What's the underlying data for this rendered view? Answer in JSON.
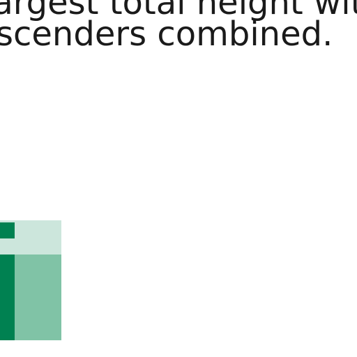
{
  "text": {
    "line1": "largest total height with",
    "line2": "scenders combined."
  },
  "graphic": {
    "colors": {
      "dark": "#008151",
      "mid": "#80c3a6",
      "light": "#cce6dc"
    }
  }
}
